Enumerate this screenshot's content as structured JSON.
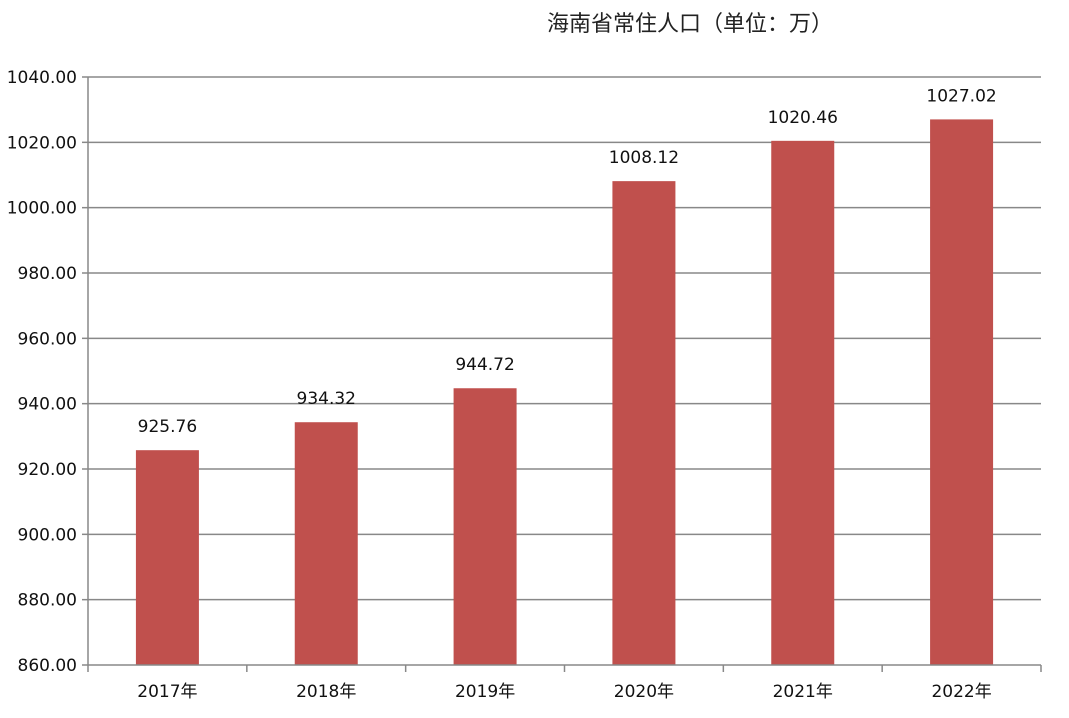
{
  "chart_data": {
    "type": "bar",
    "title": "海南省常住人口（单位：万）",
    "categories": [
      "2017年",
      "2018年",
      "2019年",
      "2020年",
      "2021年",
      "2022年"
    ],
    "values": [
      925.76,
      934.32,
      944.72,
      1008.12,
      1020.46,
      1027.02
    ],
    "data_labels": [
      "925.76",
      "934.32",
      "944.72",
      "1008.12",
      "1020.46",
      "1027.02"
    ],
    "ylim": [
      860,
      1040
    ],
    "y_ticks": [
      860,
      880,
      900,
      920,
      940,
      960,
      980,
      1000,
      1020,
      1040
    ],
    "y_tick_labels": [
      "860.00",
      "880.00",
      "900.00",
      "920.00",
      "940.00",
      "960.00",
      "980.00",
      "1000.00",
      "1020.00",
      "1040.00"
    ],
    "xlabel": "",
    "ylabel": "",
    "grid": true,
    "legend": "none",
    "colors": {
      "bar": "#c0504d",
      "grid": "#888888",
      "axis": "#888888"
    }
  }
}
